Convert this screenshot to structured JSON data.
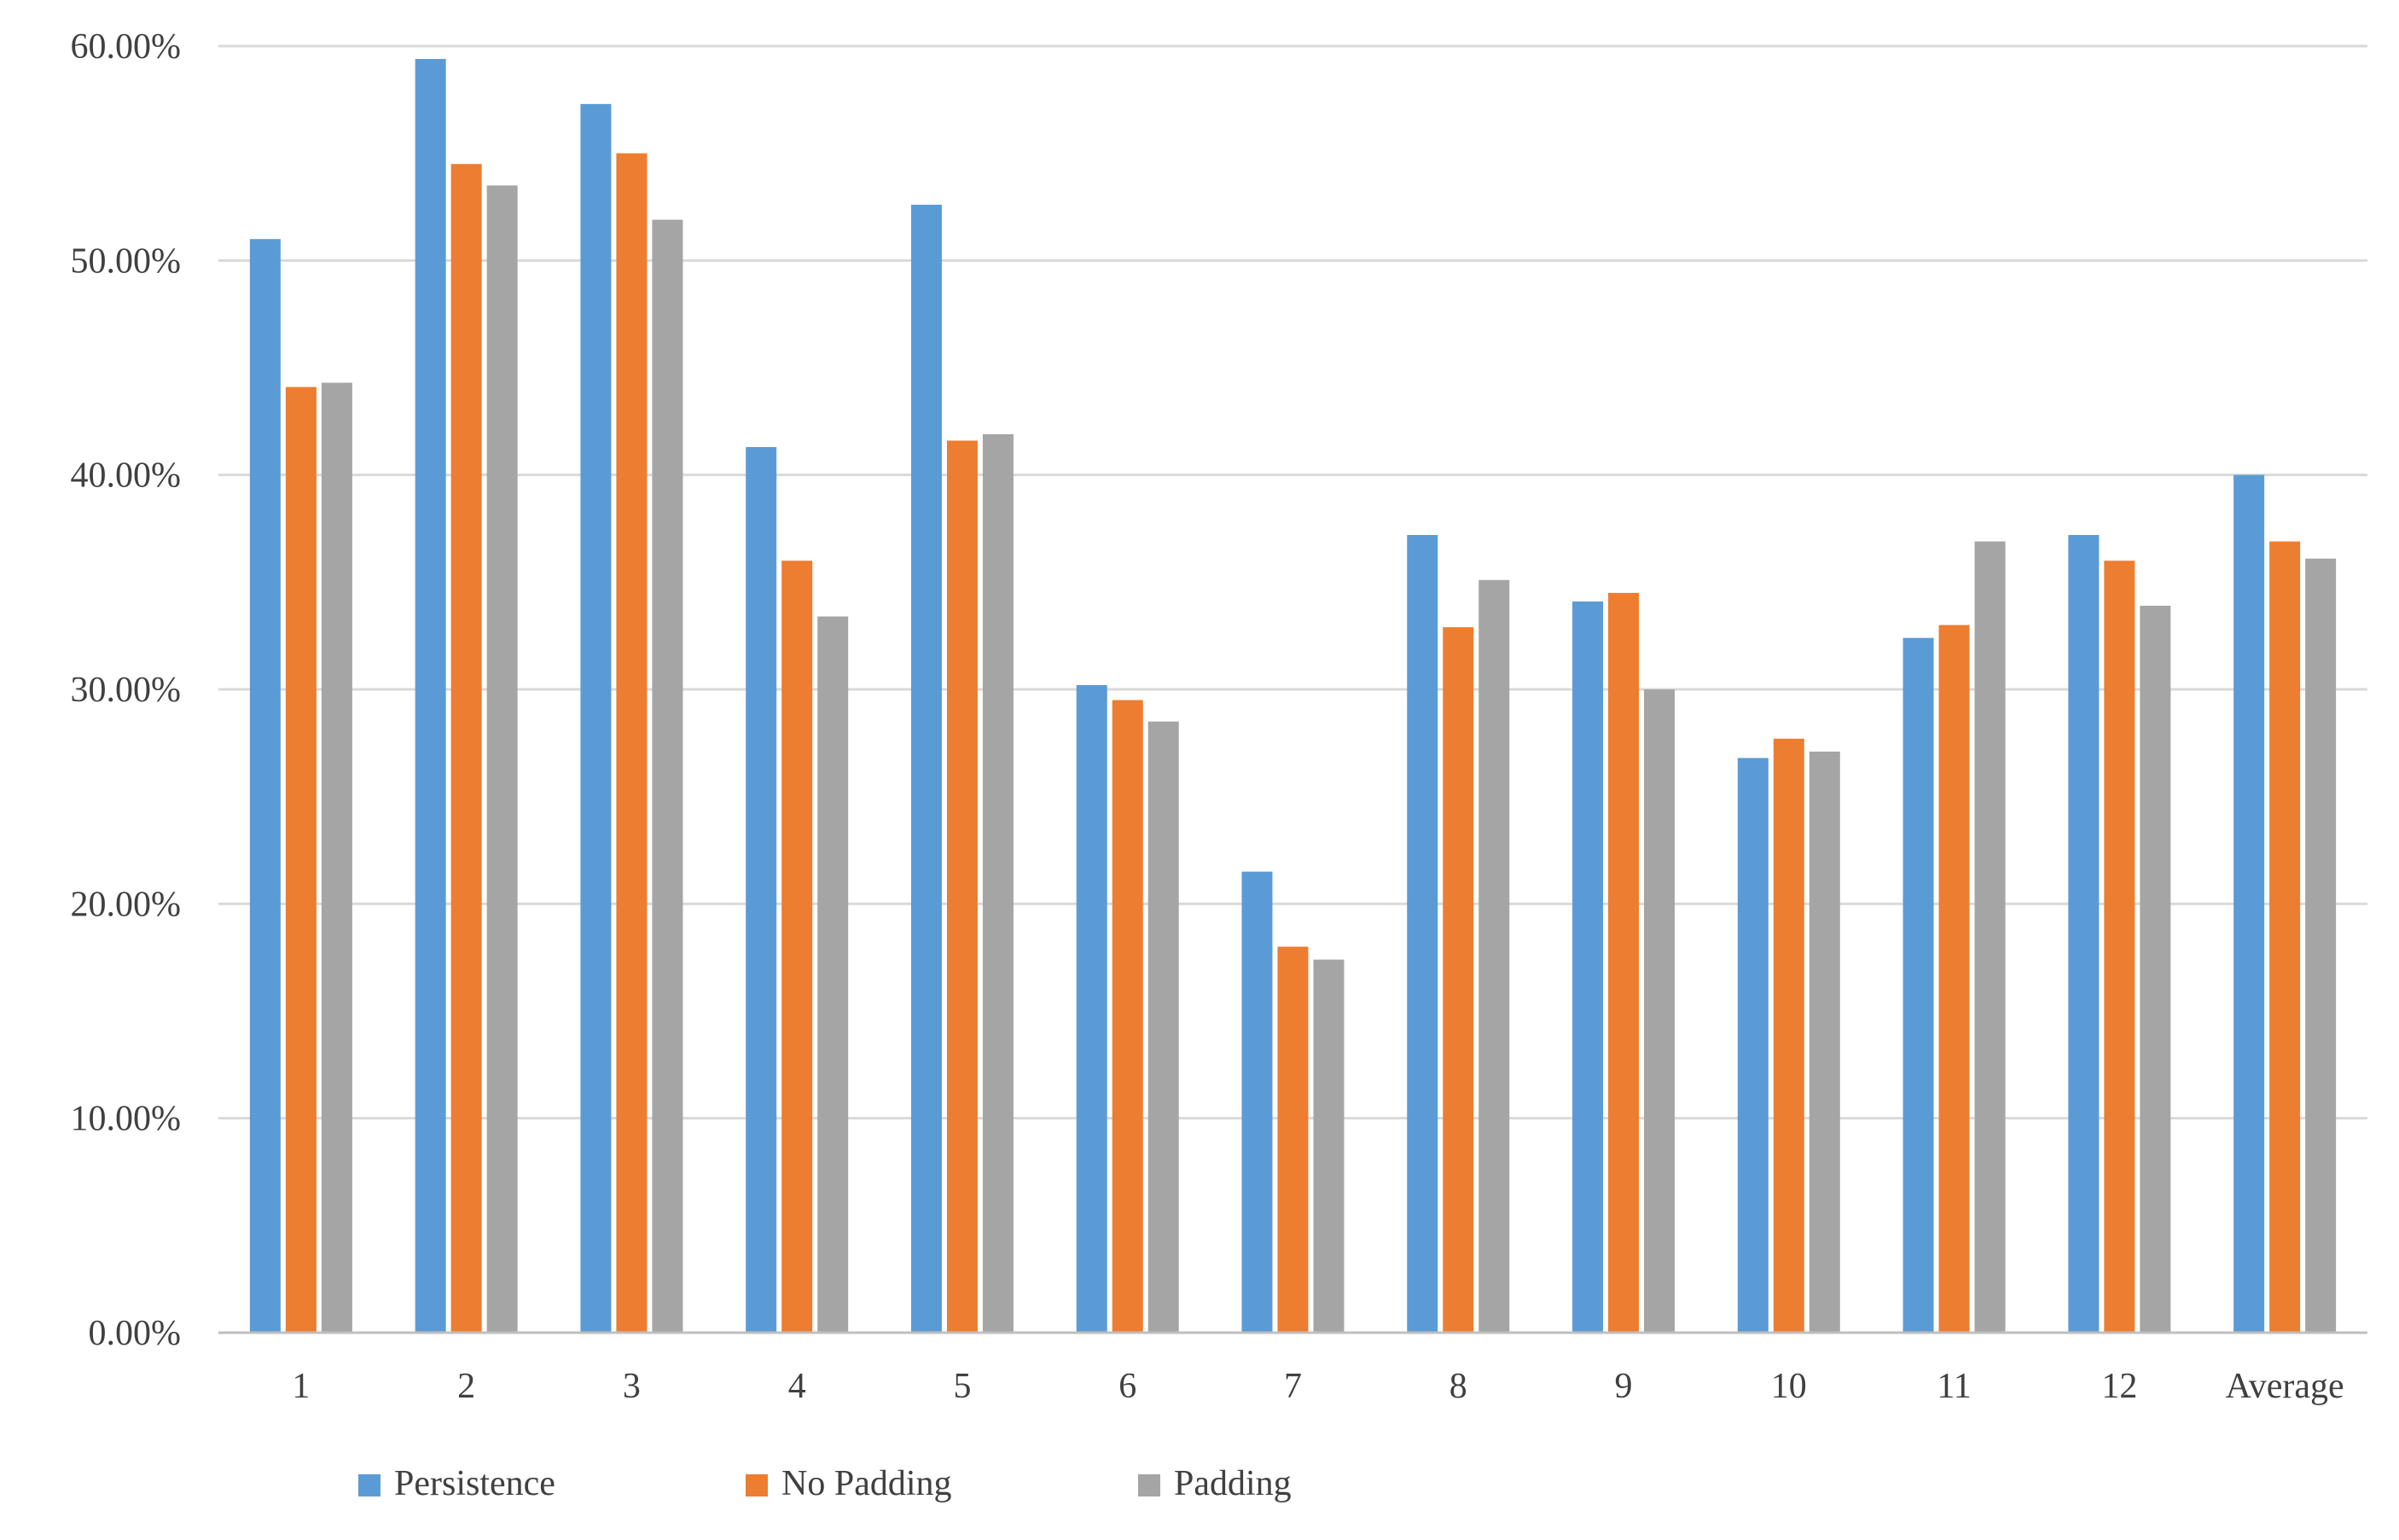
{
  "chart_data": {
    "type": "bar",
    "title": "",
    "xlabel": "",
    "ylabel": "",
    "ylim": [
      0,
      0.6
    ],
    "y_ticks": [
      {
        "value": 0.0,
        "label": "0.00%"
      },
      {
        "value": 0.1,
        "label": "10.00%"
      },
      {
        "value": 0.2,
        "label": "20.00%"
      },
      {
        "value": 0.3,
        "label": "30.00%"
      },
      {
        "value": 0.4,
        "label": "40.00%"
      },
      {
        "value": 0.5,
        "label": "50.00%"
      },
      {
        "value": 0.6,
        "label": "60.00%"
      }
    ],
    "grid": true,
    "legend_position": "bottom",
    "categories": [
      "1",
      "2",
      "3",
      "4",
      "5",
      "6",
      "7",
      "8",
      "9",
      "10",
      "11",
      "12",
      "Average"
    ],
    "series": [
      {
        "name": "Persistence",
        "color": "#5B9BD5",
        "values": [
          0.51,
          0.594,
          0.573,
          0.413,
          0.526,
          0.302,
          0.215,
          0.372,
          0.341,
          0.268,
          0.324,
          0.372,
          0.4
        ]
      },
      {
        "name": "No Padding",
        "color": "#ED7D31",
        "values": [
          0.441,
          0.545,
          0.55,
          0.36,
          0.416,
          0.295,
          0.18,
          0.329,
          0.345,
          0.277,
          0.33,
          0.36,
          0.369
        ]
      },
      {
        "name": "Padding",
        "color": "#A5A5A5",
        "values": [
          0.443,
          0.535,
          0.519,
          0.334,
          0.419,
          0.285,
          0.174,
          0.351,
          0.3,
          0.271,
          0.369,
          0.339,
          0.361
        ]
      }
    ],
    "gridline_color": "#D9D9D9",
    "axis_color": "#BFBFBF"
  }
}
